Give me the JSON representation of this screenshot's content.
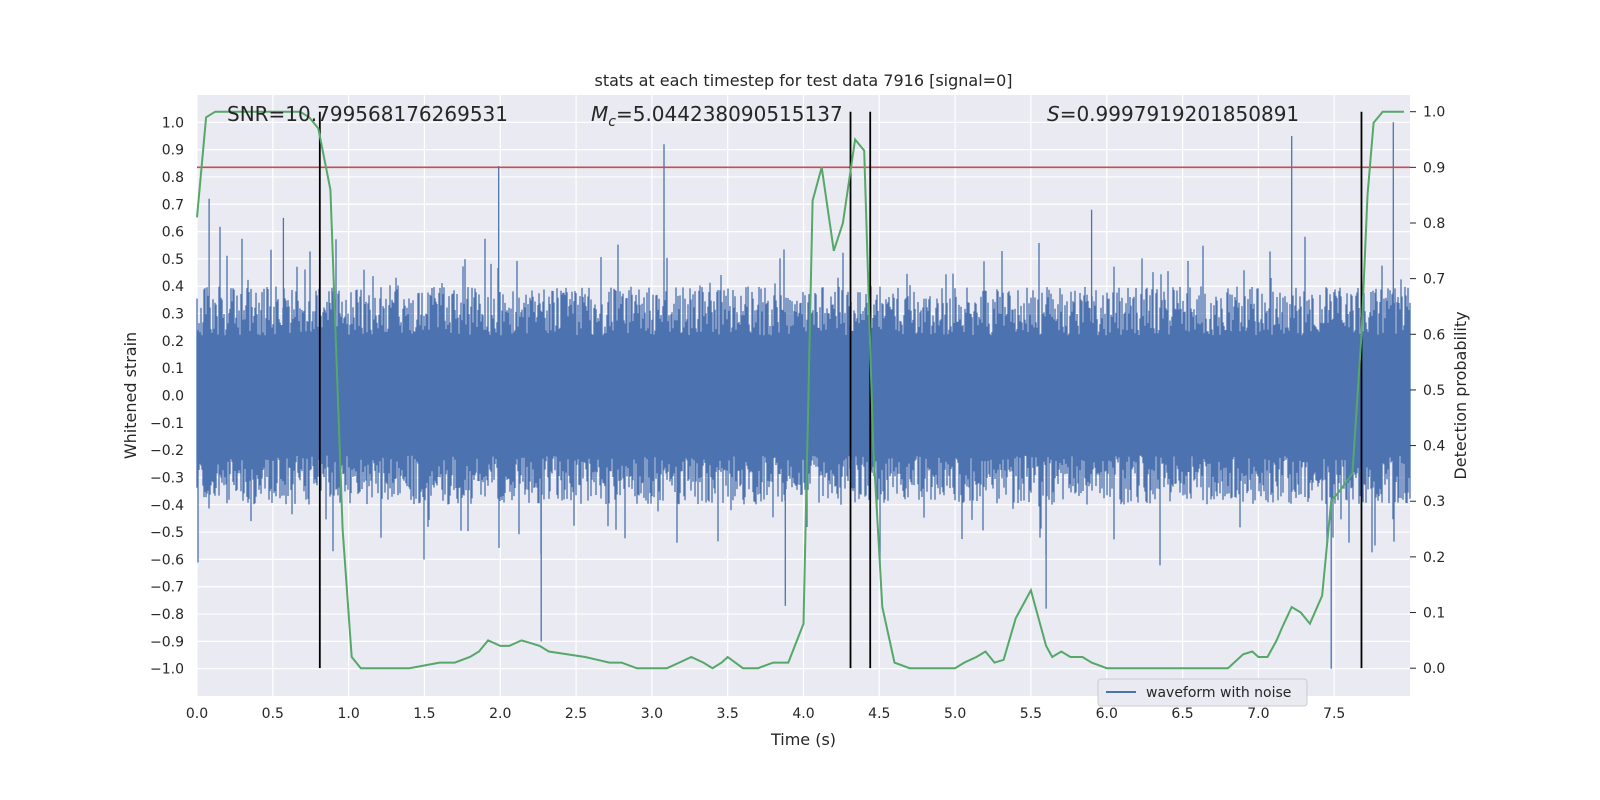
{
  "chart_data": {
    "type": "line",
    "title": "stats at each timestep for test data 7916 [signal=0]",
    "xlabel": "Time (s)",
    "ylabel": "Whitened strain",
    "ylabel_right": "Detection probability",
    "xlim": [
      0.0,
      8.0
    ],
    "ylim": [
      -1.1,
      1.1
    ],
    "ylim_right": [
      -0.05,
      1.03
    ],
    "x_ticks": [
      "0.0",
      "0.5",
      "1.0",
      "1.5",
      "2.0",
      "2.5",
      "3.0",
      "3.5",
      "4.0",
      "4.5",
      "5.0",
      "5.5",
      "6.0",
      "6.5",
      "7.0",
      "7.5"
    ],
    "y_ticks": [
      "1.0",
      "0.9",
      "0.8",
      "0.7",
      "0.6",
      "0.5",
      "0.4",
      "0.3",
      "0.2",
      "0.1",
      "0.0",
      "−0.1",
      "−0.2",
      "−0.3",
      "−0.4",
      "−0.5",
      "−0.6",
      "−0.7",
      "−0.8",
      "−0.9",
      "−1.0"
    ],
    "y_right_ticks": [
      "1.0",
      "0.9",
      "0.8",
      "0.7",
      "0.6",
      "0.5",
      "0.4",
      "0.3",
      "0.2",
      "0.1",
      "0.0"
    ],
    "grid": true,
    "legend": {
      "placement": "lower-right",
      "entries": [
        "waveform with noise"
      ]
    },
    "annotations": {
      "snr": "SNR=10.799568176269531",
      "mc_symbol": "M",
      "mc_sub": "c",
      "mc_value": "=5.044238090515137",
      "s_symbol": "S",
      "s_value": "=0.9997919201850891"
    },
    "threshold_prob": 0.9,
    "vertical_lines_time": [
      0.81,
      4.31,
      4.44,
      7.68
    ],
    "waveform_envelope": {
      "typical_abs_max": 0.4,
      "max": 1.0,
      "min": -1.0
    },
    "waveform_peaks": [
      [
        0.08,
        0.72
      ],
      [
        0.57,
        0.65
      ],
      [
        0.81,
        0.65
      ],
      [
        1.99,
        0.84
      ],
      [
        2.27,
        -0.9
      ],
      [
        3.08,
        0.92
      ],
      [
        3.88,
        -0.77
      ],
      [
        4.44,
        0.82
      ],
      [
        5.6,
        -0.78
      ],
      [
        5.9,
        0.68
      ],
      [
        7.22,
        0.95
      ],
      [
        7.48,
        -1.0
      ],
      [
        7.89,
        1.0
      ]
    ],
    "series": [
      {
        "name": "waveform with noise",
        "color": "#4c72b0"
      },
      {
        "color": "#55a868",
        "x": [
          0.0,
          0.06,
          0.12,
          0.2,
          0.3,
          0.4,
          0.5,
          0.6,
          0.68,
          0.74,
          0.8,
          0.88,
          0.96,
          1.02,
          1.08,
          1.2,
          1.4,
          1.6,
          1.7,
          1.8,
          1.86,
          1.92,
          2.0,
          2.06,
          2.14,
          2.2,
          2.26,
          2.32,
          2.44,
          2.56,
          2.64,
          2.72,
          2.8,
          2.9,
          3.0,
          3.1,
          3.18,
          3.26,
          3.34,
          3.4,
          3.46,
          3.5,
          3.6,
          3.7,
          3.8,
          3.9,
          4.0,
          4.06,
          4.12,
          4.2,
          4.26,
          4.34,
          4.4,
          4.46,
          4.52,
          4.6,
          4.7,
          4.8,
          4.9,
          5.0,
          5.06,
          5.14,
          5.2,
          5.26,
          5.32,
          5.4,
          5.5,
          5.6,
          5.64,
          5.7,
          5.76,
          5.84,
          5.9,
          6.0,
          6.1,
          6.2,
          6.3,
          6.4,
          6.5,
          6.6,
          6.7,
          6.8,
          6.9,
          6.96,
          7.0,
          7.06,
          7.12,
          7.16,
          7.22,
          7.28,
          7.34,
          7.42,
          7.48,
          7.54,
          7.62,
          7.68,
          7.72,
          7.76,
          7.82,
          7.88,
          7.96
        ],
        "values": [
          0.81,
          0.99,
          1.0,
          1.0,
          1.0,
          1.0,
          1.0,
          1.0,
          1.0,
          0.99,
          0.97,
          0.86,
          0.25,
          0.02,
          0.0,
          0.0,
          0.0,
          0.01,
          0.01,
          0.02,
          0.03,
          0.05,
          0.04,
          0.04,
          0.05,
          0.045,
          0.04,
          0.03,
          0.025,
          0.02,
          0.015,
          0.01,
          0.01,
          0.0,
          0.0,
          0.0,
          0.01,
          0.02,
          0.01,
          0.0,
          0.01,
          0.02,
          0.0,
          0.0,
          0.01,
          0.01,
          0.08,
          0.84,
          0.9,
          0.75,
          0.8,
          0.95,
          0.93,
          0.4,
          0.11,
          0.01,
          0.0,
          0.0,
          0.0,
          0.0,
          0.01,
          0.02,
          0.03,
          0.01,
          0.015,
          0.09,
          0.14,
          0.04,
          0.02,
          0.03,
          0.02,
          0.02,
          0.01,
          0.0,
          0.0,
          0.0,
          0.0,
          0.0,
          0.0,
          0.0,
          0.0,
          0.0,
          0.025,
          0.03,
          0.02,
          0.02,
          0.05,
          0.075,
          0.11,
          0.1,
          0.08,
          0.13,
          0.3,
          0.32,
          0.35,
          0.6,
          0.85,
          0.98,
          1.0,
          1.0,
          1.0
        ]
      }
    ]
  }
}
